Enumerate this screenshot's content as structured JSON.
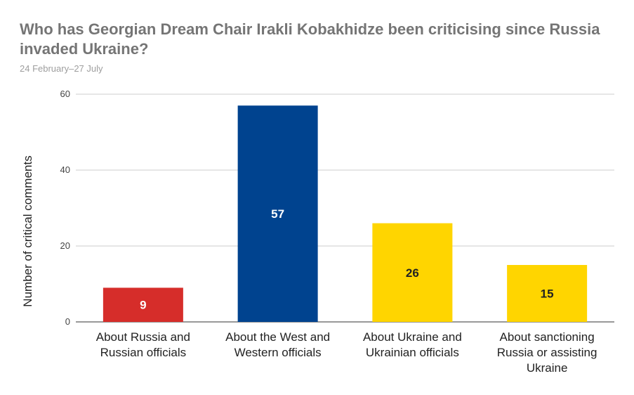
{
  "chart_data": {
    "type": "bar",
    "title": "Who has Georgian Dream Chair Irakli Kobakhidze been criticising since Russia invaded Ukraine?",
    "subtitle": "24 February–27 July",
    "ylabel": "Number of critical comments",
    "xlabel": "",
    "ylim": [
      0,
      60
    ],
    "yticks": [
      0,
      20,
      40,
      60
    ],
    "grid": true,
    "legend": "none",
    "categories": [
      [
        "About Russia and",
        "Russian officials"
      ],
      [
        "About the West and",
        "Western officials"
      ],
      [
        "About Ukraine and",
        "Ukrainian officials"
      ],
      [
        "About sanctioning",
        "Russia or assisting",
        "Ukraine"
      ]
    ],
    "values": [
      9,
      57,
      26,
      15
    ],
    "colors": [
      "#d62d2a",
      "#00438f",
      "#ffd500",
      "#ffd500"
    ],
    "label_colors": [
      "#ffffff",
      "#ffffff",
      "#222222",
      "#222222"
    ]
  }
}
